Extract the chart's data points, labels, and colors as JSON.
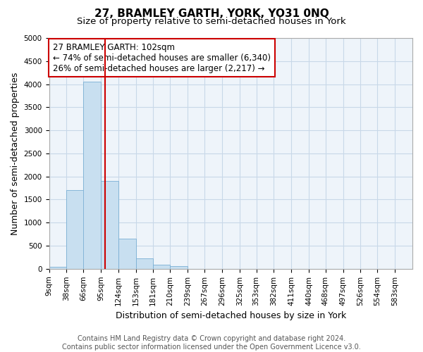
{
  "title": "27, BRAMLEY GARTH, YORK, YO31 0NQ",
  "subtitle": "Size of property relative to semi-detached houses in York",
  "xlabel": "Distribution of semi-detached houses by size in York",
  "ylabel": "Number of semi-detached properties",
  "footnote": "Contains HM Land Registry data © Crown copyright and database right 2024.\nContains public sector information licensed under the Open Government Licence v3.0.",
  "bar_color": "#c8dff0",
  "bar_edge_color": "#7aafd4",
  "bar_left_edges": [
    9,
    38,
    66,
    95,
    124,
    153,
    181,
    210,
    239,
    267,
    296,
    325,
    353,
    382,
    411,
    440,
    468,
    497,
    526,
    554
  ],
  "bar_heights": [
    50,
    1700,
    4050,
    1900,
    650,
    230,
    90,
    60,
    0,
    0,
    0,
    0,
    0,
    0,
    0,
    0,
    0,
    0,
    0,
    0
  ],
  "bin_width": 29,
  "x_tick_labels": [
    "9sqm",
    "38sqm",
    "66sqm",
    "95sqm",
    "124sqm",
    "153sqm",
    "181sqm",
    "210sqm",
    "239sqm",
    "267sqm",
    "296sqm",
    "325sqm",
    "353sqm",
    "382sqm",
    "411sqm",
    "440sqm",
    "468sqm",
    "497sqm",
    "526sqm",
    "554sqm",
    "583sqm"
  ],
  "x_tick_positions": [
    9,
    38,
    66,
    95,
    124,
    153,
    181,
    210,
    239,
    267,
    296,
    325,
    353,
    382,
    411,
    440,
    468,
    497,
    526,
    554,
    583
  ],
  "property_size": 102,
  "vline_color": "#cc0000",
  "annotation_line1": "27 BRAMLEY GARTH: 102sqm",
  "annotation_line2": "← 74% of semi-detached houses are smaller (6,340)",
  "annotation_line3": "26% of semi-detached houses are larger (2,217) →",
  "annotation_box_color": "#cc0000",
  "ylim": [
    0,
    5000
  ],
  "yticks": [
    0,
    500,
    1000,
    1500,
    2000,
    2500,
    3000,
    3500,
    4000,
    4500,
    5000
  ],
  "grid_color": "#c8d8e8",
  "background_color": "#ffffff",
  "plot_bg_color": "#eef4fa",
  "title_fontsize": 11,
  "subtitle_fontsize": 9.5,
  "axis_label_fontsize": 9,
  "tick_fontsize": 7.5,
  "annotation_fontsize": 8.5,
  "footnote_fontsize": 7
}
